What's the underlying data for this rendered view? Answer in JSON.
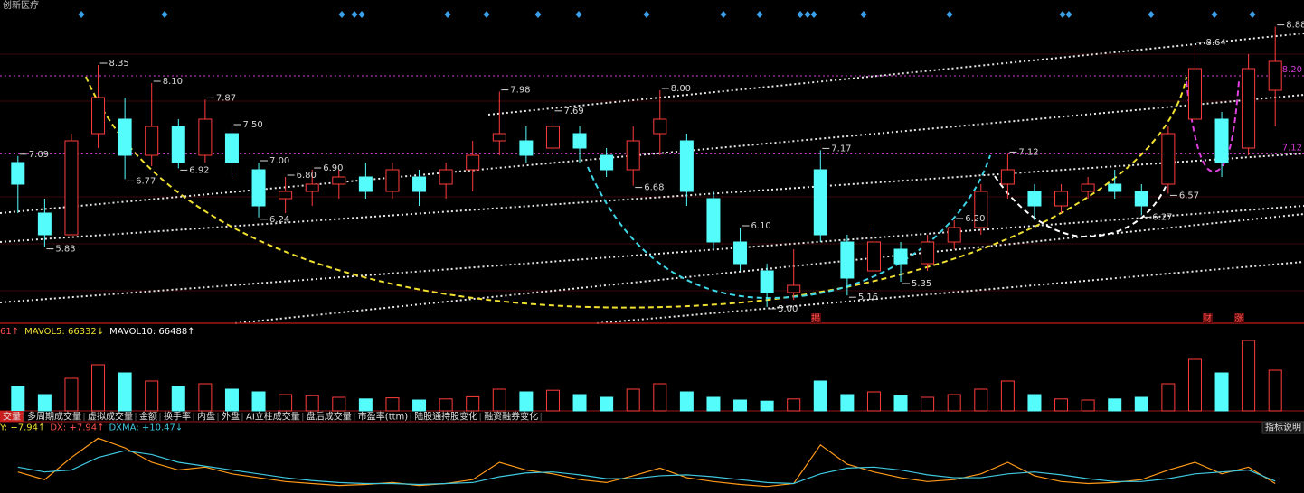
{
  "header": {
    "title": "创新医疗"
  },
  "chart_data": [
    {
      "type": "candlestick",
      "open": [
        7.0,
        6.3,
        6.0,
        7.4,
        7.6,
        7.1,
        7.5,
        7.1,
        7.4,
        6.9,
        6.5,
        6.6,
        6.7,
        6.8,
        6.6,
        6.8,
        6.7,
        6.9,
        7.3,
        7.3,
        7.2,
        7.4,
        7.1,
        6.9,
        7.4,
        7.3,
        6.5,
        5.9,
        5.5,
        5.2,
        6.9,
        5.9,
        5.5,
        5.8,
        5.6,
        5.9,
        6.1,
        6.7,
        6.6,
        6.4,
        6.6,
        6.7,
        6.6,
        6.7,
        7.6,
        7.6,
        7.2,
        8.0
      ],
      "high": [
        7.09,
        6.5,
        7.4,
        8.35,
        7.9,
        8.1,
        7.6,
        7.87,
        7.5,
        7.0,
        6.8,
        6.9,
        6.9,
        7.0,
        7.0,
        6.9,
        7.0,
        7.3,
        7.98,
        7.5,
        7.69,
        7.5,
        7.2,
        7.5,
        8.0,
        7.4,
        6.6,
        6.1,
        5.6,
        5.8,
        7.17,
        6.0,
        6.1,
        5.9,
        6.0,
        6.2,
        6.7,
        7.12,
        6.7,
        6.7,
        6.8,
        6.9,
        6.7,
        7.5,
        8.64,
        7.7,
        8.5,
        8.88
      ],
      "low": [
        6.3,
        5.83,
        6.0,
        7.2,
        6.77,
        6.95,
        6.92,
        7.0,
        6.8,
        6.24,
        6.3,
        6.4,
        6.5,
        6.5,
        6.5,
        6.4,
        6.5,
        6.6,
        7.1,
        7.0,
        7.1,
        7.0,
        6.8,
        6.68,
        7.1,
        6.4,
        5.8,
        5.5,
        5.0,
        5.1,
        5.9,
        5.16,
        5.4,
        5.35,
        5.5,
        5.8,
        6.0,
        6.5,
        6.2,
        6.3,
        6.5,
        6.5,
        6.27,
        6.57,
        7.5,
        6.8,
        7.1,
        7.5
      ],
      "close": [
        6.7,
        6.0,
        7.3,
        7.9,
        7.1,
        7.5,
        7.0,
        7.6,
        7.0,
        6.4,
        6.6,
        6.7,
        6.8,
        6.6,
        6.9,
        6.6,
        6.9,
        7.1,
        7.4,
        7.1,
        7.5,
        7.2,
        6.9,
        7.3,
        7.6,
        6.6,
        5.9,
        5.6,
        5.2,
        5.3,
        6.0,
        5.4,
        5.9,
        5.6,
        5.9,
        6.1,
        6.6,
        6.9,
        6.4,
        6.6,
        6.7,
        6.6,
        6.4,
        7.4,
        8.3,
        7.0,
        8.3,
        8.4
      ],
      "up_color": "#ff3c3c",
      "down_color": "#54fcfc",
      "ylim": [
        4.775,
        9.0
      ],
      "annotations": [
        {
          "value": 7.09,
          "label": "7.09"
        },
        {
          "value": 5.83,
          "label": "5.83"
        },
        {
          "value": 8.35,
          "label": "8.35"
        },
        {
          "value": 6.77,
          "label": "6.77"
        },
        {
          "value": 8.1,
          "label": "8.10"
        },
        {
          "value": 6.92,
          "label": "6.92"
        },
        {
          "value": 7.87,
          "label": "7.87"
        },
        {
          "value": 6.24,
          "label": "6.24"
        },
        {
          "value": 7.98,
          "label": "7.98"
        },
        {
          "value": 7.0,
          "label": "7.00"
        },
        {
          "value": 7.69,
          "label": "7.69"
        },
        {
          "value": 6.68,
          "label": "6.68"
        },
        {
          "value": 8.0,
          "label": "8.00"
        },
        {
          "value": 5.0,
          "label": "5.00"
        },
        {
          "value": 7.17,
          "label": "7.17"
        },
        {
          "value": 5.16,
          "label": "5.16"
        },
        {
          "value": 6.1,
          "label": "6.10"
        },
        {
          "value": 5.35,
          "label": "5.35"
        },
        {
          "value": 7.12,
          "label": "7.12"
        },
        {
          "value": 6.2,
          "label": "6.20"
        },
        {
          "value": 6.9,
          "label": "6.90"
        },
        {
          "value": 6.27,
          "label": "6.27"
        },
        {
          "value": 6.57,
          "label": "6.57"
        },
        {
          "value": 8.64,
          "label": "8.64"
        },
        {
          "value": 6.8,
          "label": "6.80"
        },
        {
          "value": 8.88,
          "label": "8.88"
        },
        {
          "value": 7.5,
          "label": "7.50"
        }
      ],
      "levels": [
        {
          "value": 8.2,
          "label": "8.20"
        },
        {
          "value": 7.12,
          "label": "7.12"
        }
      ],
      "level_color": "#d23cd2",
      "markers": [
        "揭",
        "财",
        "涨"
      ]
    },
    {
      "type": "bar",
      "legend": [
        "61↑",
        "MAVOL5: 66332↓",
        "MAVOL10: 66488↑"
      ],
      "values": [
        45000,
        30000,
        60000,
        85000,
        70000,
        55000,
        45000,
        50000,
        40000,
        35000,
        30000,
        28000,
        25000,
        22000,
        24000,
        20000,
        22000,
        26000,
        40000,
        35000,
        38000,
        30000,
        25000,
        40000,
        50000,
        35000,
        25000,
        20000,
        18000,
        22000,
        55000,
        30000,
        35000,
        28000,
        25000,
        30000,
        40000,
        55000,
        30000,
        22000,
        20000,
        22000,
        25000,
        50000,
        95000,
        70000,
        130000,
        75000
      ],
      "ylim": [
        0,
        140000
      ]
    },
    {
      "type": "line",
      "tabs": [
        "交量",
        "多周期成交量",
        "虚拟成交量",
        "金额",
        "换手率",
        "内盘",
        "外盘",
        "AI立柱成交量",
        "盘后成交量",
        "市盈率(ttm)",
        "陆股通持股变化",
        "融资融券变化"
      ],
      "button": "指标说明",
      "legend": [
        "Y: +7.94↑",
        "DX: +7.94↑",
        "DXMA: +10.47↓"
      ],
      "series": [
        {
          "name": "DX",
          "color": "#ff9a1a",
          "values": [
            20,
            12,
            35,
            55,
            45,
            30,
            22,
            25,
            18,
            14,
            10,
            8,
            6,
            7,
            9,
            6,
            8,
            12,
            30,
            22,
            18,
            12,
            9,
            16,
            24,
            14,
            10,
            7,
            5,
            8,
            48,
            28,
            20,
            14,
            10,
            12,
            18,
            30,
            16,
            10,
            8,
            9,
            12,
            22,
            30,
            18,
            25,
            7.94
          ]
        },
        {
          "name": "DXMA",
          "color": "#3fc8e0",
          "values": [
            25,
            20,
            22,
            35,
            42,
            38,
            30,
            26,
            22,
            18,
            14,
            11,
            9,
            8,
            8,
            7,
            8,
            9,
            15,
            19,
            20,
            17,
            13,
            13,
            16,
            17,
            15,
            12,
            9,
            8,
            18,
            24,
            25,
            22,
            17,
            14,
            14,
            18,
            20,
            17,
            13,
            10,
            10,
            13,
            18,
            20,
            22,
            10.47
          ]
        }
      ],
      "ylim": [
        0,
        60
      ]
    }
  ]
}
